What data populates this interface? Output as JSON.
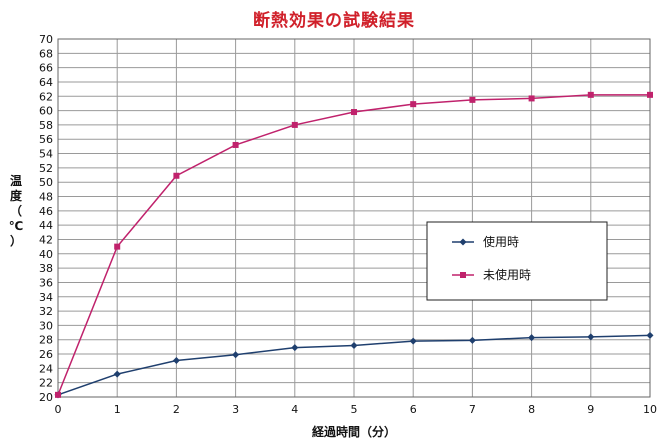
{
  "chart_data": {
    "type": "line",
    "title": "断熱効果の試験結果",
    "xlabel": "経過時間（分）",
    "ylabel": "温度（℃）",
    "x": [
      0,
      1,
      2,
      3,
      4,
      5,
      6,
      7,
      8,
      9,
      10
    ],
    "xlim": [
      0,
      10
    ],
    "ylim": [
      20,
      70
    ],
    "y_ticks": [
      20,
      22,
      24,
      26,
      28,
      30,
      32,
      34,
      36,
      38,
      40,
      42,
      44,
      46,
      48,
      50,
      52,
      54,
      56,
      58,
      60,
      62,
      64,
      66,
      68,
      70
    ],
    "x_ticks": [
      0,
      1,
      2,
      3,
      4,
      5,
      6,
      7,
      8,
      9,
      10
    ],
    "grid": true,
    "legend_position": "right",
    "series": [
      {
        "name": "使用時",
        "color": "#1f3f6e",
        "marker": "diamond",
        "values": [
          20.3,
          23.2,
          25.1,
          25.9,
          26.9,
          27.2,
          27.8,
          27.9,
          28.3,
          28.4,
          28.6
        ]
      },
      {
        "name": "未使用時",
        "color": "#c0226c",
        "marker": "square",
        "values": [
          20.3,
          41.0,
          50.9,
          55.2,
          58.0,
          59.8,
          60.9,
          61.5,
          61.7,
          62.2,
          62.2
        ]
      }
    ]
  }
}
